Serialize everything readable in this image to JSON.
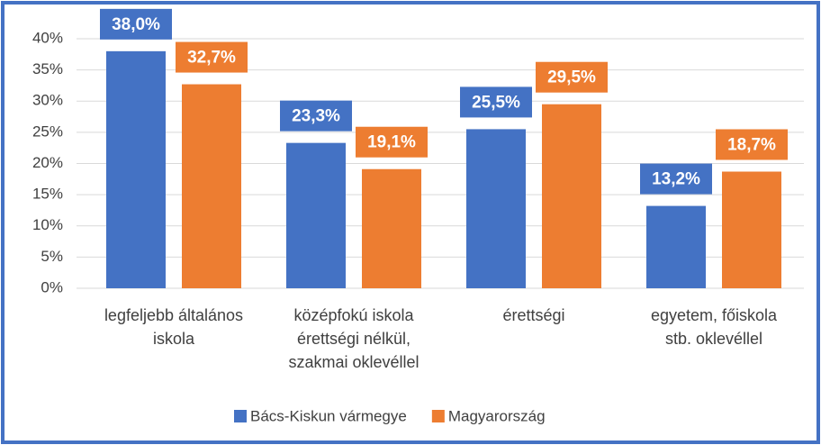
{
  "chart_data": {
    "type": "bar",
    "categories": [
      "legfeljebb általános\niskola",
      "középfokú iskola\nérettségi nélkül,\nszakmai oklevéllel",
      "érettségi",
      "egyetem, főiskola\nstb. oklevéllel"
    ],
    "series": [
      {
        "name": "Bács-Kiskun vármegye",
        "color": "#4472c4",
        "values": [
          38.0,
          23.3,
          25.5,
          13.2
        ],
        "value_labels": [
          "38,0%",
          "23,3%",
          "25,5%",
          "13,2%"
        ]
      },
      {
        "name": "Magyarország",
        "color": "#ed7d31",
        "values": [
          32.7,
          19.1,
          29.5,
          18.7
        ],
        "value_labels": [
          "32,7%",
          "19,1%",
          "29,5%",
          "18,7%"
        ]
      }
    ],
    "ylim": [
      0,
      40
    ],
    "yticks": [
      {
        "value": 0,
        "label": "0%"
      },
      {
        "value": 5,
        "label": "5%"
      },
      {
        "value": 10,
        "label": "10%"
      },
      {
        "value": 15,
        "label": "15%"
      },
      {
        "value": 20,
        "label": "20%"
      },
      {
        "value": 25,
        "label": "25%"
      },
      {
        "value": 30,
        "label": "30%"
      },
      {
        "value": 35,
        "label": "35%"
      },
      {
        "value": 40,
        "label": "40%"
      }
    ],
    "grid": true,
    "legend": "bottom"
  }
}
